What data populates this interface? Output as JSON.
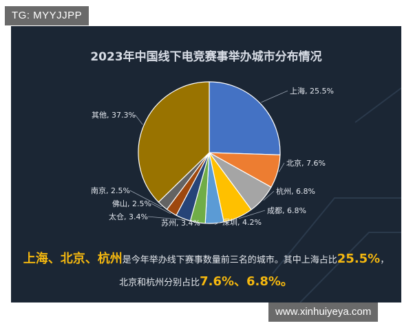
{
  "watermarks": {
    "top": "TG: MYYJJPP",
    "bottom": "www.xinhuiyeya.com"
  },
  "chart_data": {
    "type": "pie",
    "title": "2023年中国线下电竞赛事举办城市分布情况",
    "unit": "%",
    "slices": [
      {
        "label": "上海",
        "value": 25.5,
        "color": "#4472c4",
        "text": "上海, 25.5%"
      },
      {
        "label": "北京",
        "value": 7.6,
        "color": "#ed7d31",
        "text": "北京, 7.6%"
      },
      {
        "label": "杭州",
        "value": 6.8,
        "color": "#a5a5a5",
        "text": "杭州, 6.8%"
      },
      {
        "label": "成都",
        "value": 6.8,
        "color": "#ffc000",
        "text": "成都, 6.8%"
      },
      {
        "label": "深圳",
        "value": 4.2,
        "color": "#5b9bd5",
        "text": "深圳, 4.2%"
      },
      {
        "label": "苏州",
        "value": 3.4,
        "color": "#70ad47",
        "text": "苏州, 3.4%"
      },
      {
        "label": "太仓",
        "value": 3.4,
        "color": "#264478",
        "text": "太仓, 3.4%"
      },
      {
        "label": "佛山",
        "value": 2.5,
        "color": "#9e480e",
        "text": "佛山, 2.5%"
      },
      {
        "label": "南京",
        "value": 2.5,
        "color": "#636363",
        "text": "南京, 2.5%"
      },
      {
        "label": "其他",
        "value": 37.3,
        "color": "#997300",
        "text": "其他, 37.3%"
      }
    ],
    "legend": "none"
  },
  "summary": {
    "city1": "上海",
    "sep1": "、",
    "city2": "北京",
    "sep2": "、",
    "city3": "杭州",
    "text1": "是今年举办线下赛事数量前三名的城市。其中上海占比",
    "pct1": "25.5%",
    "tail1": "，",
    "text2": "北京和杭州分别占比",
    "pct2": "7.6%",
    "sep3": "、",
    "pct3": "6.8%",
    "tail2": "。"
  }
}
